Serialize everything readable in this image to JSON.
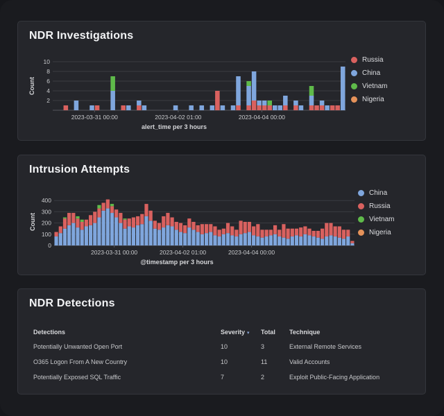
{
  "colors": {
    "Russia": "#d9615f",
    "China": "#7fa6dd",
    "Vietnam": "#5fba4a",
    "Nigeria": "#e5925a"
  },
  "investigations": {
    "title": "NDR Investigations",
    "legend": [
      "Russia",
      "China",
      "Vietnam",
      "Nigeria"
    ],
    "chart_data": {
      "type": "bar",
      "stacked": true,
      "xlabel": "alert_time per 3 hours",
      "ylabel": "Count",
      "ylim": [
        0,
        10
      ],
      "yticks": [
        2,
        4,
        6,
        8,
        10
      ],
      "xtick_labels": [
        "2023-03-31 00:00",
        "2023-04-02 01:00",
        "2023-04-04 00:00"
      ],
      "xtick_bins": [
        8,
        24,
        40
      ],
      "bins": 56,
      "series": [
        {
          "name": "Russia",
          "values": [
            0,
            0,
            1,
            0,
            0,
            0,
            0,
            0,
            1,
            0,
            0,
            0,
            0,
            1,
            0,
            0,
            1,
            0,
            0,
            0,
            0,
            0,
            0,
            0,
            0,
            0,
            0,
            0,
            0,
            0,
            0,
            4,
            0,
            0,
            0,
            1,
            0,
            1,
            2,
            1,
            1,
            1,
            0,
            0,
            1,
            0,
            1,
            0,
            0,
            1,
            1,
            1,
            0,
            1,
            1,
            0
          ]
        },
        {
          "name": "China",
          "values": [
            0,
            0,
            0,
            0,
            2,
            0,
            0,
            1,
            0,
            0,
            0,
            4,
            0,
            0,
            1,
            0,
            1,
            1,
            0,
            0,
            0,
            0,
            0,
            1,
            0,
            0,
            1,
            0,
            1,
            0,
            1,
            0,
            1,
            0,
            1,
            6,
            0,
            4,
            6,
            1,
            1,
            0,
            1,
            1,
            2,
            0,
            1,
            1,
            0,
            2,
            0,
            1,
            1,
            0,
            0,
            9
          ]
        },
        {
          "name": "Vietnam",
          "values": [
            0,
            0,
            0,
            0,
            0,
            0,
            0,
            0,
            0,
            0,
            0,
            3,
            0,
            0,
            0,
            0,
            0,
            0,
            0,
            0,
            0,
            0,
            0,
            0,
            0,
            0,
            0,
            0,
            0,
            0,
            0,
            0,
            0,
            0,
            0,
            0,
            0,
            1,
            0,
            0,
            0,
            1,
            0,
            0,
            0,
            0,
            0,
            0,
            0,
            2,
            0,
            0,
            0,
            0,
            0,
            0
          ]
        },
        {
          "name": "Nigeria",
          "values": [
            0,
            0,
            0,
            0,
            0,
            0,
            0,
            0,
            0,
            0,
            0,
            0,
            0,
            0,
            0,
            0,
            0,
            0,
            0,
            0,
            0,
            0,
            0,
            0,
            0,
            0,
            0,
            0,
            0,
            0,
            0,
            0,
            0,
            0,
            0,
            0,
            0,
            0,
            0,
            0,
            0,
            0,
            0,
            0,
            0,
            0,
            0,
            0,
            0,
            0,
            0,
            0,
            0,
            0,
            0,
            0
          ]
        }
      ]
    }
  },
  "intrusion": {
    "title": "Intrusion Attempts",
    "legend": [
      "China",
      "Russia",
      "Vietnam",
      "Nigeria"
    ],
    "chart_data": {
      "type": "bar",
      "stacked": true,
      "xlabel": "@timestamp per 3 hours",
      "ylabel": "Count",
      "ylim": [
        0,
        420
      ],
      "yticks": [
        0,
        100,
        200,
        300,
        400
      ],
      "xtick_labels": [
        "2023-03-31 00:00",
        "2023-04-02 01:00",
        "2023-04-04 00:00"
      ],
      "xtick_bins": [
        14,
        30,
        46
      ],
      "bins": 70,
      "series": [
        {
          "name": "China",
          "values": [
            80,
            110,
            150,
            180,
            200,
            160,
            140,
            170,
            180,
            200,
            250,
            310,
            330,
            290,
            250,
            200,
            150,
            170,
            160,
            180,
            190,
            260,
            220,
            150,
            140,
            160,
            180,
            170,
            140,
            120,
            110,
            160,
            140,
            120,
            100,
            110,
            120,
            90,
            80,
            100,
            110,
            90,
            80,
            100,
            110,
            120,
            90,
            80,
            70,
            80,
            90,
            100,
            80,
            70,
            60,
            80,
            90,
            80,
            100,
            90,
            80,
            70,
            60,
            80,
            90,
            80,
            70,
            60,
            80,
            20
          ]
        },
        {
          "name": "Russia",
          "values": [
            40,
            60,
            90,
            110,
            90,
            80,
            70,
            60,
            90,
            100,
            80,
            70,
            80,
            60,
            70,
            90,
            80,
            70,
            90,
            80,
            90,
            110,
            90,
            70,
            60,
            100,
            110,
            80,
            70,
            80,
            70,
            80,
            70,
            60,
            90,
            80,
            70,
            80,
            60,
            50,
            90,
            80,
            60,
            120,
            100,
            90,
            80,
            110,
            70,
            60,
            50,
            80,
            60,
            120,
            90,
            70,
            60,
            80,
            70,
            60,
            50,
            60,
            90,
            120,
            110,
            90,
            100,
            80,
            60,
            20
          ]
        },
        {
          "name": "Vietnam",
          "values": [
            0,
            0,
            10,
            0,
            0,
            20,
            20,
            0,
            0,
            0,
            30,
            0,
            0,
            20,
            0,
            0,
            10,
            0,
            0,
            0,
            0,
            0,
            0,
            0,
            0,
            0,
            0,
            0,
            0,
            0,
            0,
            0,
            0,
            0,
            0,
            0,
            0,
            0,
            0,
            0,
            0,
            0,
            0,
            0,
            0,
            0,
            0,
            0,
            0,
            0,
            0,
            0,
            0,
            0,
            0,
            0,
            0,
            0,
            0,
            0,
            0,
            0,
            0,
            0,
            0,
            0,
            0,
            0,
            0,
            0
          ]
        },
        {
          "name": "Nigeria",
          "values": [
            0,
            0,
            0,
            0,
            0,
            0,
            0,
            0,
            0,
            0,
            0,
            0,
            0,
            0,
            0,
            0,
            0,
            0,
            0,
            0,
            0,
            0,
            0,
            0,
            0,
            0,
            0,
            0,
            0,
            0,
            0,
            0,
            0,
            0,
            0,
            0,
            0,
            0,
            0,
            0,
            0,
            0,
            0,
            0,
            0,
            0,
            0,
            0,
            0,
            0,
            0,
            0,
            0,
            0,
            0,
            0,
            0,
            0,
            0,
            0,
            0,
            0,
            0,
            0,
            0,
            0,
            0,
            0,
            0,
            0
          ]
        }
      ]
    }
  },
  "detections": {
    "title": "NDR Detections",
    "columns": [
      "Detections",
      "Severity",
      "Total",
      "Technique"
    ],
    "rows": [
      {
        "detection": "Potentially Unwanted Open Port",
        "severity": "10",
        "total": "3",
        "technique": "External Remote Services"
      },
      {
        "detection": "O365 Logon From A New Country",
        "severity": "10",
        "total": "11",
        "technique": "Valid Accounts"
      },
      {
        "detection": "Potentially Exposed SQL Traffic",
        "severity": "7",
        "total": "2",
        "technique": "Exploit Public-Facing Application"
      }
    ]
  }
}
